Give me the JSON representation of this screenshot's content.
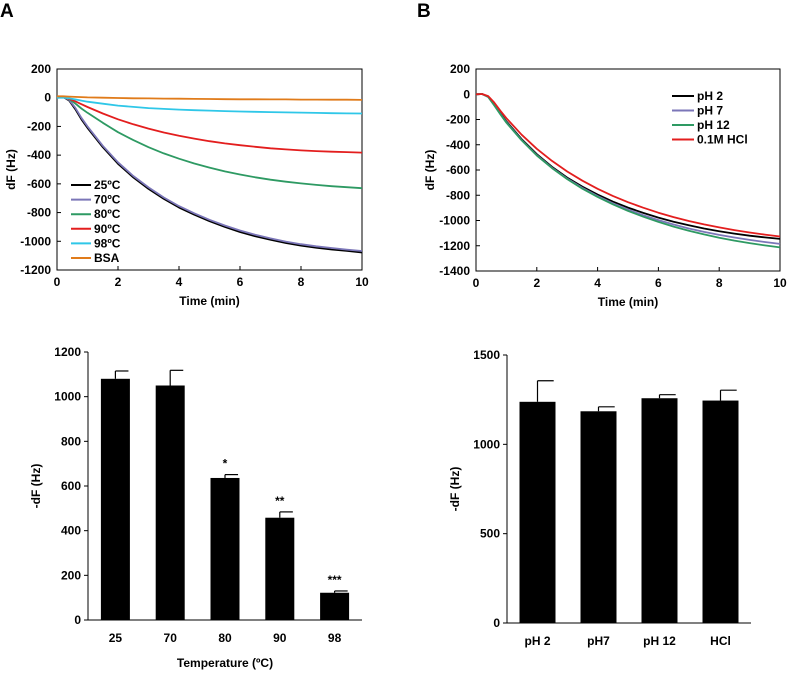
{
  "panels": {
    "a": "A",
    "b": "B"
  },
  "chart_data": [
    {
      "id": "temp-curves",
      "type": "line",
      "title": "",
      "xlabel": "Time (min)",
      "ylabel": "dF (Hz)",
      "xlim": [
        0,
        10
      ],
      "ylim": [
        -1200,
        200
      ],
      "xticks": [
        "0",
        "2",
        "4",
        "6",
        "8",
        "10"
      ],
      "yticks": [
        "200",
        "0",
        "-200",
        "-400",
        "-600",
        "-800",
        "-1000",
        "-1200"
      ],
      "x": [
        0,
        0.2,
        0.4,
        0.6,
        0.8,
        1,
        1.5,
        2,
        2.5,
        3,
        3.5,
        4,
        4.5,
        5,
        5.5,
        6,
        6.5,
        7,
        7.5,
        8,
        8.5,
        9,
        9.5,
        10
      ],
      "series": [
        {
          "name": "25ºC",
          "color": "#000000",
          "values": [
            0,
            5,
            -20,
            -80,
            -150,
            -210,
            -345,
            -460,
            -555,
            -635,
            -705,
            -765,
            -815,
            -860,
            -900,
            -935,
            -965,
            -990,
            -1012,
            -1030,
            -1045,
            -1057,
            -1067,
            -1078
          ]
        },
        {
          "name": "70ºC",
          "color": "#7b76b8",
          "values": [
            0,
            5,
            -15,
            -70,
            -140,
            -200,
            -335,
            -450,
            -545,
            -625,
            -695,
            -755,
            -805,
            -850,
            -890,
            -925,
            -955,
            -980,
            -1002,
            -1020,
            -1035,
            -1047,
            -1058,
            -1068
          ]
        },
        {
          "name": "80ºC",
          "color": "#2e9a63",
          "values": [
            0,
            3,
            -10,
            -40,
            -75,
            -105,
            -175,
            -240,
            -295,
            -345,
            -388,
            -425,
            -458,
            -487,
            -513,
            -535,
            -554,
            -571,
            -585,
            -597,
            -607,
            -616,
            -623,
            -630
          ]
        },
        {
          "name": "90ºC",
          "color": "#e31e1e",
          "values": [
            0,
            2,
            -8,
            -25,
            -45,
            -65,
            -110,
            -150,
            -185,
            -215,
            -242,
            -265,
            -285,
            -303,
            -318,
            -331,
            -342,
            -352,
            -360,
            -367,
            -372,
            -376,
            -379,
            -382
          ]
        },
        {
          "name": "98ºC",
          "color": "#2fc7e8",
          "values": [
            0,
            1,
            -5,
            -12,
            -20,
            -28,
            -42,
            -55,
            -64,
            -72,
            -78,
            -83,
            -87,
            -90,
            -93,
            -96,
            -98,
            -100,
            -102,
            -104,
            -106,
            -108,
            -109,
            -110
          ]
        },
        {
          "name": "BSA",
          "color": "#e07b1a",
          "values": [
            10,
            10,
            8,
            6,
            4,
            2,
            0,
            -2,
            -4,
            -5,
            -6,
            -7,
            -8,
            -9,
            -10,
            -11,
            -11,
            -12,
            -12,
            -13,
            -13,
            -14,
            -14,
            -15
          ]
        }
      ],
      "legend": "bottom-left"
    },
    {
      "id": "ph-curves",
      "type": "line",
      "title": "",
      "xlabel": "Time (min)",
      "ylabel": "dF (Hz)",
      "xlim": [
        0,
        10
      ],
      "ylim": [
        -1400,
        200
      ],
      "xticks": [
        "0",
        "2",
        "4",
        "6",
        "8",
        "10"
      ],
      "yticks": [
        "200",
        "0",
        "-200",
        "-400",
        "-600",
        "-800",
        "-1000",
        "-1200",
        "-1400"
      ],
      "x": [
        0,
        0.2,
        0.4,
        0.6,
        0.8,
        1,
        1.5,
        2,
        2.5,
        3,
        3.5,
        4,
        4.5,
        5,
        5.5,
        6,
        6.5,
        7,
        7.5,
        8,
        8.5,
        9,
        9.5,
        10
      ],
      "series": [
        {
          "name": "pH 2",
          "color": "#000000",
          "values": [
            0,
            2,
            -20,
            -80,
            -150,
            -215,
            -355,
            -475,
            -575,
            -660,
            -732,
            -795,
            -850,
            -898,
            -940,
            -977,
            -1010,
            -1038,
            -1063,
            -1085,
            -1104,
            -1120,
            -1134,
            -1146
          ]
        },
        {
          "name": "pH 7",
          "color": "#7b76b8",
          "values": [
            0,
            2,
            -22,
            -85,
            -155,
            -222,
            -362,
            -482,
            -582,
            -668,
            -742,
            -807,
            -864,
            -914,
            -958,
            -997,
            -1032,
            -1063,
            -1090,
            -1114,
            -1135,
            -1154,
            -1170,
            -1185
          ]
        },
        {
          "name": "pH 12",
          "color": "#2e9a63",
          "values": [
            0,
            2,
            -22,
            -88,
            -158,
            -225,
            -365,
            -485,
            -585,
            -672,
            -748,
            -813,
            -872,
            -924,
            -970,
            -1011,
            -1048,
            -1081,
            -1110,
            -1136,
            -1159,
            -1179,
            -1197,
            -1213
          ]
        },
        {
          "name": "0.1M HCl",
          "color": "#e31e1e",
          "values": [
            0,
            2,
            -15,
            -65,
            -130,
            -190,
            -320,
            -432,
            -528,
            -612,
            -685,
            -749,
            -805,
            -855,
            -899,
            -938,
            -973,
            -1004,
            -1031,
            -1055,
            -1076,
            -1095,
            -1112,
            -1127
          ]
        }
      ],
      "legend": "top-right"
    },
    {
      "id": "temp-bars",
      "type": "bar",
      "title": "",
      "xlabel": "Temperature (ºC)",
      "ylabel": "-dF (Hz)",
      "ylim": [
        0,
        1200
      ],
      "yticks": [
        "1200",
        "1000",
        "800",
        "600",
        "400",
        "200",
        "0"
      ],
      "categories": [
        "25",
        "70",
        "80",
        "90",
        "98"
      ],
      "values": [
        1080,
        1050,
        636,
        458,
        122
      ],
      "errors": [
        35,
        68,
        15,
        26,
        8
      ],
      "significance": [
        "",
        "",
        "*",
        "**",
        "***"
      ],
      "color": "#000000"
    },
    {
      "id": "ph-bars",
      "type": "bar",
      "title": "",
      "xlabel": "",
      "ylabel": "-dF (Hz)",
      "ylim": [
        0,
        1500
      ],
      "yticks": [
        "1500",
        "1000",
        "500",
        "0"
      ],
      "categories": [
        "pH 2",
        "pH7",
        "pH 12",
        "HCl"
      ],
      "values": [
        1238,
        1185,
        1258,
        1245
      ],
      "errors": [
        118,
        25,
        20,
        58
      ],
      "color": "#000000"
    }
  ]
}
